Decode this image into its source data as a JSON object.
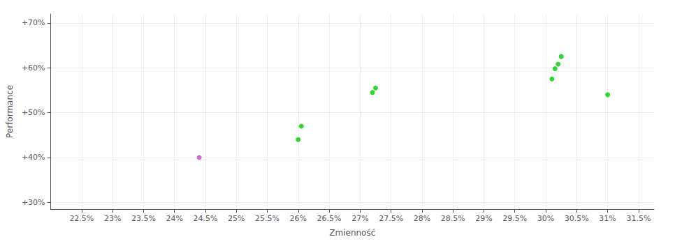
{
  "chart_data": {
    "type": "scatter",
    "xlabel": "Zmienność",
    "ylabel": "Performance",
    "x": [
      24.4,
      26.0,
      26.05,
      27.2,
      27.25,
      30.1,
      30.15,
      30.2,
      30.25,
      31.0
    ],
    "values": [
      40.0,
      44.0,
      47.0,
      54.5,
      55.5,
      57.5,
      59.8,
      60.8,
      62.5,
      54.0
    ],
    "colors": [
      "#cc44cc",
      "#00cc00",
      "#00cc00",
      "#00cc00",
      "#00cc00",
      "#00cc00",
      "#00cc00",
      "#00cc00",
      "#00cc00",
      "#00cc00"
    ],
    "xlim": [
      22.0,
      31.75
    ],
    "ylim": [
      28.5,
      72.0
    ],
    "xticks": [
      {
        "value": 22.5,
        "label": "22.5%"
      },
      {
        "value": 23.0,
        "label": "23%"
      },
      {
        "value": 23.5,
        "label": "23.5%"
      },
      {
        "value": 24.0,
        "label": "24%"
      },
      {
        "value": 24.5,
        "label": "24.5%"
      },
      {
        "value": 25.0,
        "label": "25%"
      },
      {
        "value": 25.5,
        "label": "25.5%"
      },
      {
        "value": 26.0,
        "label": "26%"
      },
      {
        "value": 26.5,
        "label": "26.5%"
      },
      {
        "value": 27.0,
        "label": "27%"
      },
      {
        "value": 27.5,
        "label": "27.5%"
      },
      {
        "value": 28.0,
        "label": "28%"
      },
      {
        "value": 28.5,
        "label": "28.5%"
      },
      {
        "value": 29.0,
        "label": "29%"
      },
      {
        "value": 29.5,
        "label": "29.5%"
      },
      {
        "value": 30.0,
        "label": "30%"
      },
      {
        "value": 30.5,
        "label": "30.5%"
      },
      {
        "value": 31.0,
        "label": "31%"
      },
      {
        "value": 31.5,
        "label": "31.5%"
      }
    ],
    "yticks": [
      {
        "value": 30,
        "label": "+30%"
      },
      {
        "value": 40,
        "label": "+40%"
      },
      {
        "value": 50,
        "label": "+50%"
      },
      {
        "value": 60,
        "label": "+60%"
      },
      {
        "value": 70,
        "label": "+70%"
      }
    ],
    "grid": true
  }
}
